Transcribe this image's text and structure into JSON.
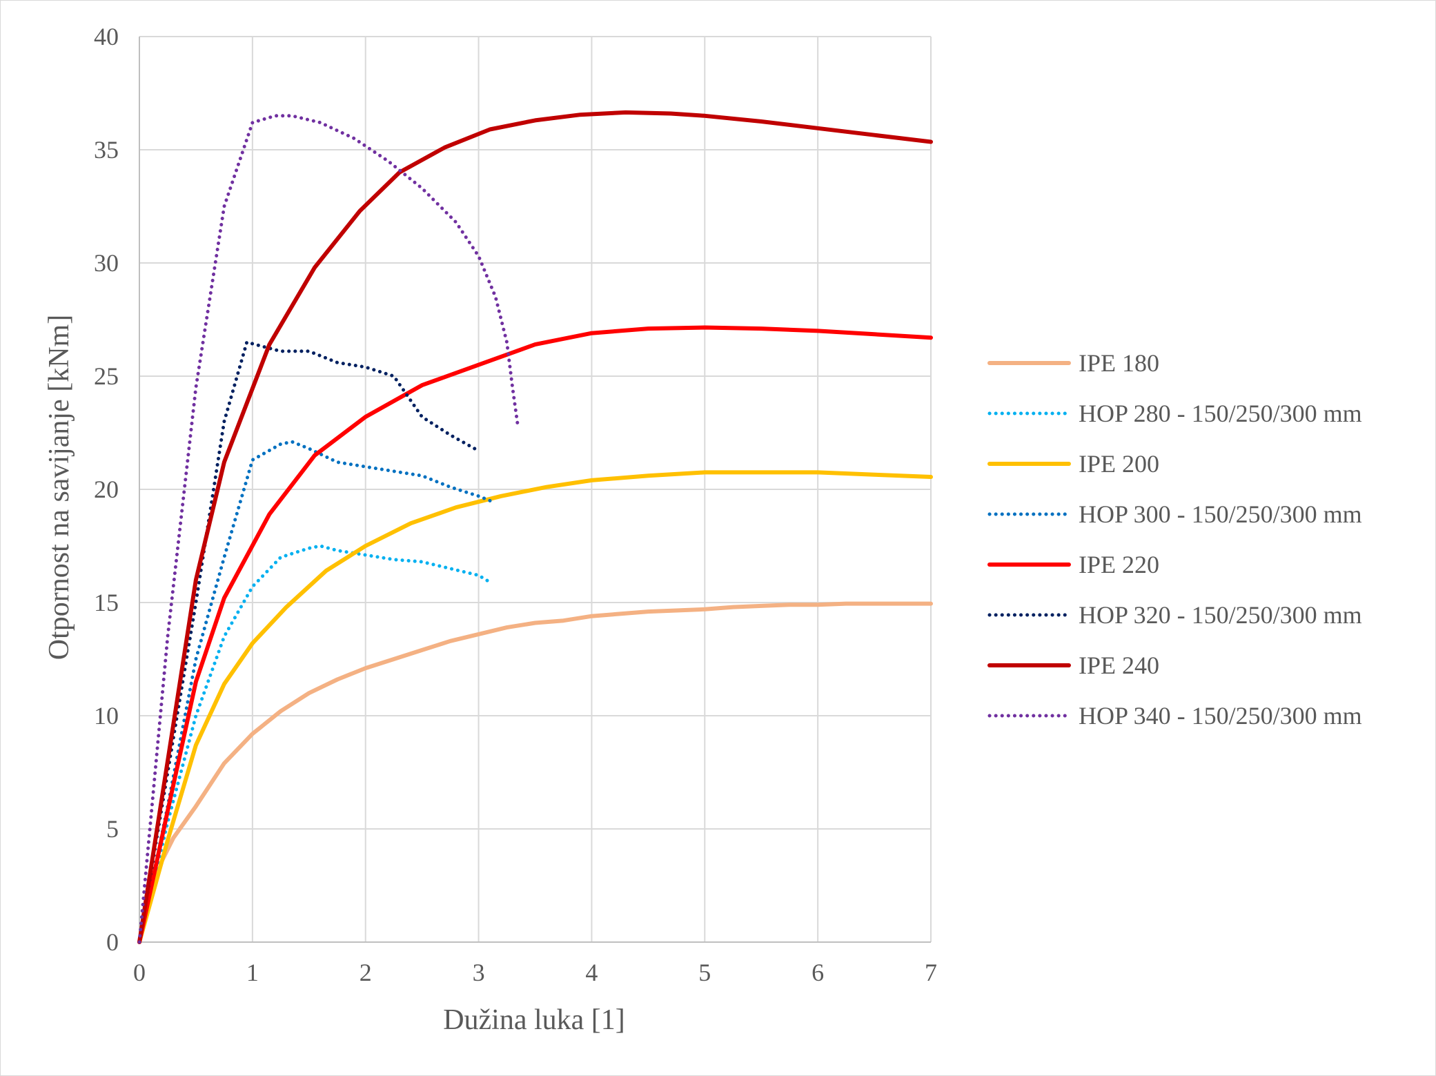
{
  "chart_data": {
    "type": "line",
    "title": "",
    "xlabel": "Dužina luka [1]",
    "ylabel": "Otpornost na savijanje [kNm]",
    "xlim": [
      0,
      7
    ],
    "ylim": [
      0,
      40
    ],
    "xticks": [
      0,
      1,
      2,
      3,
      4,
      5,
      6,
      7
    ],
    "yticks": [
      0,
      5,
      10,
      15,
      20,
      25,
      30,
      35,
      40
    ],
    "grid": true,
    "legend_position": "right",
    "series": [
      {
        "name": "IPE 180",
        "color": "#F4B183",
        "dash": "solid",
        "x": [
          0,
          0.1,
          0.2,
          0.3,
          0.5,
          0.75,
          1.0,
          1.25,
          1.5,
          1.75,
          2.0,
          2.25,
          2.5,
          2.75,
          3.0,
          3.25,
          3.5,
          3.75,
          4.0,
          4.25,
          4.5,
          4.75,
          5.0,
          5.25,
          5.5,
          5.75,
          6.0,
          6.25,
          6.5,
          6.75,
          7.0
        ],
        "y": [
          0,
          2.0,
          3.6,
          4.6,
          6.0,
          7.9,
          9.2,
          10.2,
          11.0,
          11.6,
          12.1,
          12.5,
          12.9,
          13.3,
          13.6,
          13.9,
          14.1,
          14.2,
          14.4,
          14.5,
          14.6,
          14.65,
          14.7,
          14.8,
          14.85,
          14.9,
          14.9,
          14.95,
          14.95,
          14.95,
          14.95
        ]
      },
      {
        "name": "HOP 280 - 150/250/300 mm",
        "color": "#00B0F0",
        "dash": "dotted",
        "x": [
          0,
          0.25,
          0.5,
          0.75,
          1.0,
          1.25,
          1.5,
          1.6,
          1.75,
          2.0,
          2.25,
          2.5,
          2.75,
          3.0,
          3.1
        ],
        "y": [
          0,
          5.3,
          10.0,
          13.5,
          15.7,
          17.0,
          17.4,
          17.5,
          17.3,
          17.1,
          16.9,
          16.8,
          16.5,
          16.2,
          15.9
        ]
      },
      {
        "name": "IPE 200",
        "color": "#FFC000",
        "dash": "solid",
        "x": [
          0,
          0.25,
          0.5,
          0.75,
          1.0,
          1.3,
          1.65,
          2.0,
          2.4,
          2.8,
          3.2,
          3.6,
          4.0,
          4.5,
          5.0,
          5.5,
          6.0,
          6.5,
          7.0
        ],
        "y": [
          0,
          4.5,
          8.7,
          11.4,
          13.2,
          14.8,
          16.4,
          17.5,
          18.5,
          19.2,
          19.7,
          20.1,
          20.4,
          20.6,
          20.75,
          20.75,
          20.75,
          20.65,
          20.55
        ]
      },
      {
        "name": "HOP 300 - 150/250/300 mm",
        "color": "#0070C0",
        "dash": "dotted",
        "x": [
          0,
          0.25,
          0.5,
          0.75,
          1.0,
          1.25,
          1.35,
          1.5,
          1.75,
          2.0,
          2.25,
          2.5,
          2.75,
          3.0,
          3.1
        ],
        "y": [
          0,
          6.0,
          12.5,
          17.0,
          21.3,
          22.0,
          22.1,
          21.8,
          21.2,
          21.0,
          20.8,
          20.6,
          20.1,
          19.7,
          19.5
        ]
      },
      {
        "name": "IPE 220",
        "color": "#FF0000",
        "dash": "solid",
        "x": [
          0,
          0.25,
          0.5,
          0.75,
          1.15,
          1.55,
          2.0,
          2.5,
          3.0,
          3.5,
          4.0,
          4.5,
          5.0,
          5.5,
          6.0,
          6.5,
          7.0
        ],
        "y": [
          0,
          5.8,
          11.5,
          15.2,
          18.9,
          21.5,
          23.2,
          24.6,
          25.5,
          26.4,
          26.9,
          27.1,
          27.15,
          27.1,
          27.0,
          26.85,
          26.7
        ]
      },
      {
        "name": "HOP 320 - 150/250/300 mm",
        "color": "#002060",
        "dash": "dotted",
        "x": [
          0,
          0.25,
          0.5,
          0.75,
          0.95,
          1.1,
          1.25,
          1.5,
          1.75,
          2.0,
          2.25,
          2.5,
          2.75,
          3.0
        ],
        "y": [
          0,
          7.5,
          15.0,
          23.0,
          26.5,
          26.3,
          26.1,
          26.1,
          25.6,
          25.4,
          25.0,
          23.2,
          22.4,
          21.7
        ]
      },
      {
        "name": "IPE 240",
        "color": "#C00000",
        "dash": "solid",
        "x": [
          0,
          0.25,
          0.5,
          0.75,
          1.15,
          1.55,
          1.95,
          2.3,
          2.7,
          3.1,
          3.5,
          3.9,
          4.3,
          4.7,
          5.0,
          5.5,
          6.0,
          6.5,
          7.0
        ],
        "y": [
          0,
          8.0,
          16.0,
          21.2,
          26.4,
          29.8,
          32.3,
          34.0,
          35.1,
          35.9,
          36.3,
          36.55,
          36.65,
          36.6,
          36.5,
          36.25,
          35.95,
          35.65,
          35.35
        ]
      },
      {
        "name": "HOP 340 - 150/250/300 mm",
        "color": "#7030A0",
        "dash": "dotted",
        "x": [
          0,
          0.25,
          0.5,
          0.75,
          1.0,
          1.2,
          1.35,
          1.6,
          1.9,
          2.2,
          2.5,
          2.8,
          3.0,
          3.15,
          3.25,
          3.3,
          3.35
        ],
        "y": [
          0,
          13.5,
          24.5,
          32.5,
          36.2,
          36.5,
          36.5,
          36.2,
          35.5,
          34.5,
          33.3,
          31.8,
          30.3,
          28.5,
          26.5,
          24.5,
          22.7
        ]
      }
    ]
  }
}
